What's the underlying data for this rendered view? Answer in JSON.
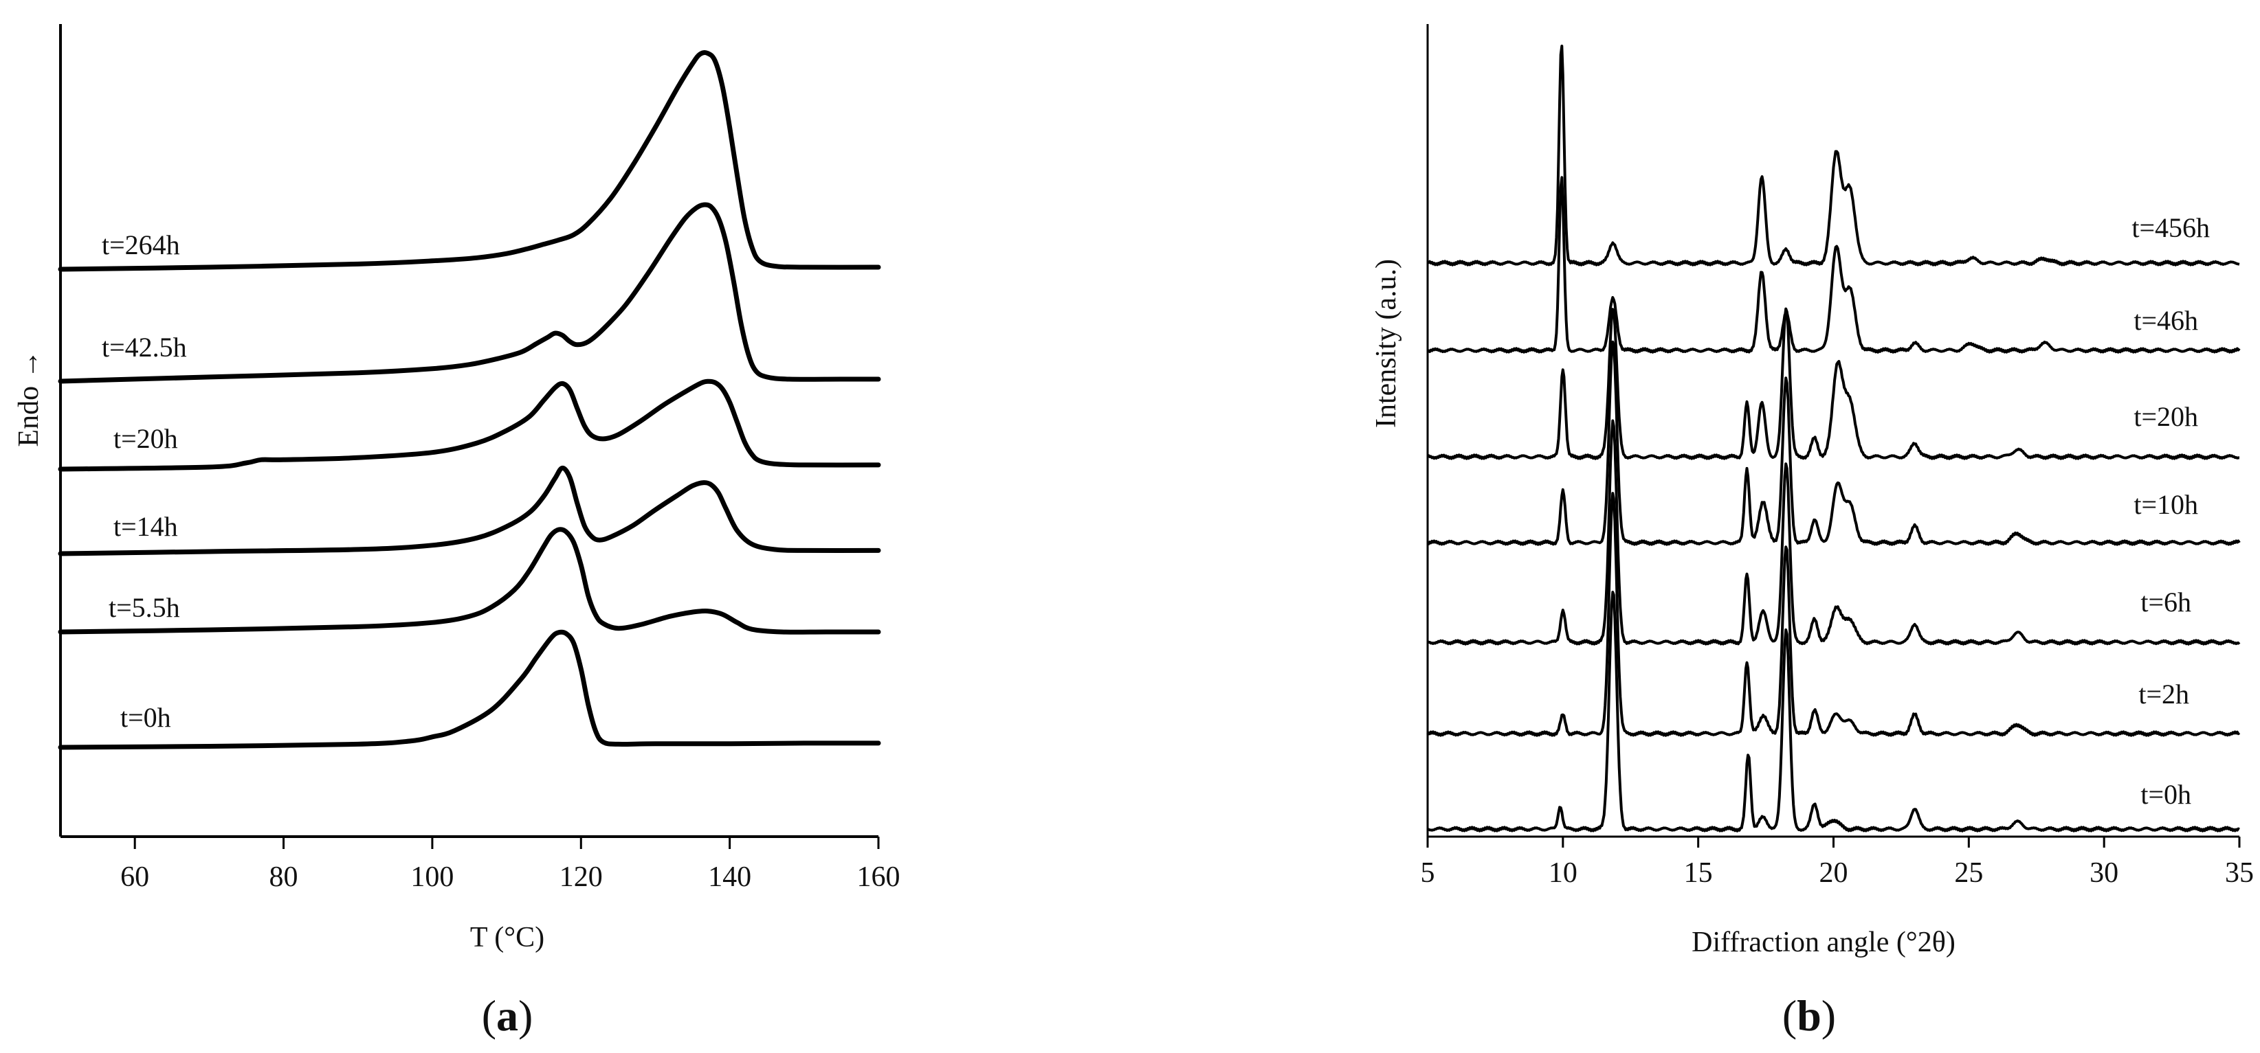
{
  "chart_data": [
    {
      "panel": "a",
      "type": "line",
      "panel_label": "a",
      "xlabel": "T (°C)",
      "ylabel": "Endo →",
      "xlim": [
        50,
        160
      ],
      "xticks": [
        60,
        80,
        100,
        120,
        140,
        160
      ],
      "grid": false,
      "legend": "none",
      "series": [
        {
          "name": "t=0h",
          "x": [
            50,
            70,
            90,
            97,
            100,
            103,
            108,
            112,
            114,
            116,
            117,
            118,
            119,
            120,
            121,
            122,
            123,
            125,
            130,
            140,
            150,
            160
          ],
          "y": [
            0.0,
            0.1,
            0.3,
            0.6,
            1.0,
            1.6,
            3.6,
            6.6,
            8.6,
            10.5,
            11.0,
            10.9,
            10.0,
            7.5,
            4.0,
            1.5,
            0.5,
            0.3,
            0.35,
            0.35,
            0.4,
            0.4
          ]
        },
        {
          "name": "t=5.5h",
          "x": [
            50,
            70,
            90,
            100,
            105,
            108,
            111,
            113,
            115,
            116,
            117,
            118,
            119,
            120,
            121,
            122,
            123,
            125,
            128,
            132,
            135,
            137,
            139,
            141,
            143,
            147,
            153,
            160
          ],
          "y": [
            0.0,
            0.2,
            0.5,
            0.9,
            1.5,
            2.4,
            4.0,
            5.8,
            8.2,
            9.3,
            9.8,
            9.6,
            8.6,
            6.4,
            3.4,
            1.6,
            0.8,
            0.35,
            0.7,
            1.5,
            1.9,
            2.0,
            1.7,
            0.9,
            0.25,
            0.0,
            0.0,
            0.0
          ]
        },
        {
          "name": "t=14h",
          "x": [
            50,
            70,
            90,
            100,
            106,
            110,
            113,
            115,
            116.5,
            117.5,
            118.5,
            119.5,
            120.5,
            121.5,
            122.5,
            124,
            127,
            130,
            133,
            135,
            136.5,
            137.5,
            138.5,
            139.5,
            141,
            143,
            146,
            150,
            160
          ],
          "y": [
            0.0,
            0.2,
            0.4,
            0.8,
            1.5,
            2.6,
            3.9,
            5.5,
            7.2,
            8.2,
            7.3,
            4.8,
            2.6,
            1.6,
            1.3,
            1.6,
            2.7,
            4.2,
            5.6,
            6.5,
            6.8,
            6.6,
            5.8,
            4.3,
            2.2,
            0.9,
            0.4,
            0.3,
            0.3
          ]
        },
        {
          "name": "t=20h",
          "x": [
            50,
            70,
            75,
            77,
            80,
            90,
            100,
            106,
            110,
            113,
            115,
            116.5,
            117.5,
            118.5,
            119.5,
            120.5,
            121.5,
            123,
            125,
            128,
            131,
            134,
            136,
            137,
            138,
            139,
            140,
            141,
            142,
            143,
            144,
            146,
            150,
            160
          ],
          "y": [
            0.0,
            0.2,
            0.6,
            0.9,
            0.9,
            1.1,
            1.6,
            2.5,
            3.7,
            5.0,
            6.6,
            7.8,
            8.2,
            7.6,
            5.8,
            4.1,
            3.2,
            2.9,
            3.3,
            4.6,
            6.1,
            7.4,
            8.2,
            8.4,
            8.3,
            7.7,
            6.4,
            4.5,
            2.6,
            1.4,
            0.8,
            0.5,
            0.4,
            0.4
          ]
        },
        {
          "name": "t=42.5h",
          "x": [
            50,
            70,
            90,
            100,
            105,
            109,
            112,
            114,
            115.5,
            116.5,
            117.5,
            118.5,
            119.5,
            121,
            123,
            126,
            129,
            132,
            134,
            135.5,
            136.5,
            137.5,
            138.5,
            139.5,
            140.5,
            141.5,
            142.5,
            143.5,
            145,
            148,
            155,
            160
          ],
          "y": [
            0.0,
            0.4,
            0.8,
            1.2,
            1.6,
            2.2,
            2.8,
            3.6,
            4.2,
            4.6,
            4.4,
            3.8,
            3.5,
            3.8,
            5.0,
            7.3,
            10.3,
            13.6,
            15.6,
            16.6,
            16.9,
            16.7,
            15.6,
            13.3,
            9.7,
            5.6,
            2.6,
            1.0,
            0.4,
            0.2,
            0.2,
            0.2
          ]
        },
        {
          "name": "t=264h",
          "x": [
            50,
            70,
            90,
            100,
            106,
            110,
            113,
            115,
            117,
            119,
            121,
            124,
            127,
            130,
            133,
            135,
            136,
            137,
            138,
            139,
            140,
            141,
            142,
            143,
            144,
            146,
            150,
            160
          ],
          "y": [
            0.0,
            0.2,
            0.5,
            0.8,
            1.1,
            1.5,
            2.0,
            2.4,
            2.8,
            3.3,
            4.4,
            6.8,
            10.0,
            13.6,
            17.4,
            19.7,
            20.6,
            20.7,
            20.0,
            17.6,
            13.6,
            9.0,
            4.8,
            2.1,
            0.8,
            0.3,
            0.2,
            0.2
          ]
        }
      ]
    },
    {
      "panel": "b",
      "type": "line",
      "panel_label": "b",
      "xlabel": "Diffraction angle (°2θ)",
      "ylabel": "Intensity (a.u.)",
      "xlim": [
        5,
        35
      ],
      "xticks": [
        5,
        10,
        15,
        20,
        25,
        30,
        35
      ],
      "grid": false,
      "legend": "none",
      "series": [
        {
          "name": "t=0h",
          "peaks": [
            [
              9.9,
              1.0,
              0.08
            ],
            [
              11.85,
              10.2,
              0.14
            ],
            [
              16.85,
              3.2,
              0.09
            ],
            [
              17.4,
              0.5,
              0.15
            ],
            [
              18.25,
              8.6,
              0.13
            ],
            [
              19.3,
              1.1,
              0.12
            ],
            [
              20.0,
              0.4,
              0.2
            ],
            [
              23.0,
              0.9,
              0.14
            ],
            [
              26.8,
              0.3,
              0.2
            ]
          ]
        },
        {
          "name": "t=2h",
          "peaks": [
            [
              10.0,
              0.8,
              0.09
            ],
            [
              11.85,
              10.3,
              0.14
            ],
            [
              16.8,
              3.1,
              0.09
            ],
            [
              17.4,
              0.8,
              0.15
            ],
            [
              18.25,
              8.0,
              0.13
            ],
            [
              19.3,
              1.0,
              0.12
            ],
            [
              20.1,
              0.8,
              0.2
            ],
            [
              20.6,
              0.5,
              0.2
            ],
            [
              23.0,
              0.8,
              0.14
            ],
            [
              26.8,
              0.4,
              0.2
            ]
          ]
        },
        {
          "name": "t=6h",
          "peaks": [
            [
              10.0,
              1.4,
              0.09
            ],
            [
              11.85,
              9.5,
              0.14
            ],
            [
              16.8,
              2.9,
              0.09
            ],
            [
              17.4,
              1.3,
              0.15
            ],
            [
              18.25,
              7.7,
              0.13
            ],
            [
              19.3,
              1.0,
              0.12
            ],
            [
              20.1,
              1.5,
              0.18
            ],
            [
              20.6,
              1.0,
              0.2
            ],
            [
              23.0,
              0.8,
              0.14
            ],
            [
              26.8,
              0.4,
              0.2
            ]
          ]
        },
        {
          "name": "t=10h",
          "peaks": [
            [
              10.0,
              2.2,
              0.09
            ],
            [
              11.85,
              8.6,
              0.14
            ],
            [
              16.8,
              3.2,
              0.09
            ],
            [
              17.4,
              1.8,
              0.15
            ],
            [
              18.25,
              7.0,
              0.13
            ],
            [
              19.3,
              1.0,
              0.12
            ],
            [
              20.15,
              2.4,
              0.18
            ],
            [
              20.6,
              1.6,
              0.2
            ],
            [
              23.0,
              0.7,
              0.14
            ],
            [
              26.8,
              0.4,
              0.2
            ]
          ]
        },
        {
          "name": "t=20h",
          "peaks": [
            [
              10.0,
              3.8,
              0.09
            ],
            [
              11.85,
              6.4,
              0.14
            ],
            [
              16.8,
              2.3,
              0.09
            ],
            [
              17.35,
              2.3,
              0.13
            ],
            [
              18.25,
              6.4,
              0.13
            ],
            [
              19.3,
              0.8,
              0.12
            ],
            [
              20.15,
              3.9,
              0.18
            ],
            [
              20.6,
              2.4,
              0.2
            ],
            [
              23.0,
              0.6,
              0.14
            ],
            [
              26.8,
              0.3,
              0.2
            ]
          ]
        },
        {
          "name": "t=46h",
          "peaks": [
            [
              9.95,
              7.4,
              0.09
            ],
            [
              11.85,
              2.2,
              0.14
            ],
            [
              17.35,
              3.4,
              0.13
            ],
            [
              18.25,
              1.6,
              0.13
            ],
            [
              20.1,
              4.3,
              0.18
            ],
            [
              20.6,
              2.6,
              0.2
            ],
            [
              23.0,
              0.3,
              0.14
            ],
            [
              25.1,
              0.3,
              0.2
            ],
            [
              27.8,
              0.3,
              0.2
            ]
          ]
        },
        {
          "name": "t=456h",
          "peaks": [
            [
              9.95,
              9.4,
              0.09
            ],
            [
              11.85,
              0.9,
              0.14
            ],
            [
              17.35,
              3.7,
              0.13
            ],
            [
              18.25,
              0.6,
              0.13
            ],
            [
              20.1,
              4.7,
              0.18
            ],
            [
              20.6,
              3.2,
              0.2
            ],
            [
              25.1,
              0.2,
              0.2
            ],
            [
              27.8,
              0.2,
              0.2
            ]
          ]
        }
      ]
    }
  ]
}
